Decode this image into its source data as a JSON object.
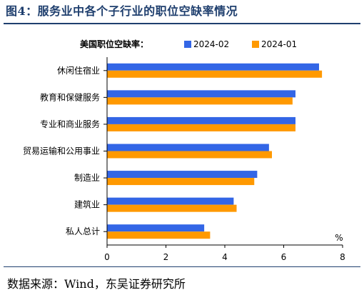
{
  "figure": {
    "title": "图4：服务业中各个子行业的职位空缺率情况",
    "source": "数据来源：Wind，东吴证券研究所"
  },
  "chart_data": {
    "type": "bar",
    "orientation": "horizontal",
    "legend_title": "美国职位空缺率：",
    "legend_position": "top",
    "categories": [
      "休闲住宿业",
      "教育和保健服务",
      "专业和商业服务",
      "贸易运输和公用事业",
      "制造业",
      "建筑业",
      "私人总计"
    ],
    "series": [
      {
        "name": "2024-02",
        "color": "#3366e6",
        "values": [
          7.2,
          6.4,
          6.4,
          5.5,
          5.1,
          4.3,
          3.3
        ]
      },
      {
        "name": "2024-01",
        "color": "#ff9900",
        "values": [
          7.3,
          6.3,
          6.4,
          5.6,
          5.0,
          4.4,
          3.5
        ]
      }
    ],
    "x_ticks": [
      0,
      2,
      4,
      6,
      8
    ],
    "xlim": [
      0,
      8
    ],
    "unit": "%",
    "grid": false
  }
}
